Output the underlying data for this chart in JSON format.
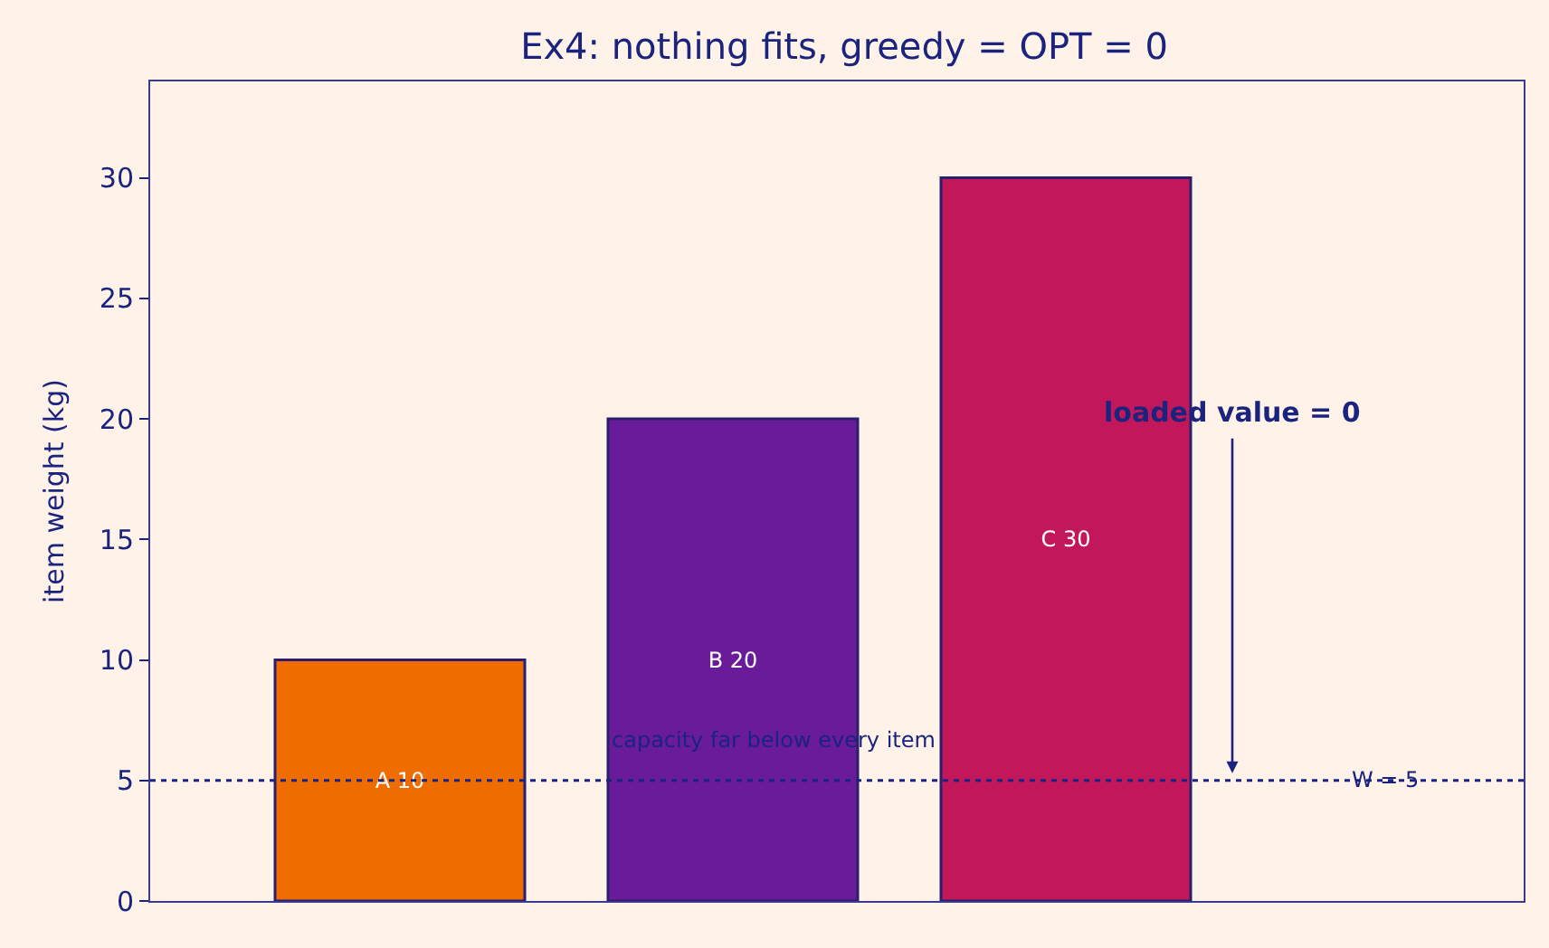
{
  "chart_data": {
    "type": "bar",
    "title": "Ex4: nothing fits, greedy = OPT = 0",
    "ylabel": "item weight (kg)",
    "categories": [
      null,
      null,
      null
    ],
    "values": [
      10,
      20,
      30
    ],
    "colors": [
      "#ef6c00",
      "#6a1b9a",
      "#c2185b"
    ],
    "value_labels": [
      "A 10",
      "B 20",
      "C 30"
    ],
    "ylim": [
      0,
      34
    ],
    "yticks": [
      0,
      5,
      10,
      15,
      20,
      25,
      30
    ],
    "ref_lines": [
      {
        "axis": "y",
        "value": 5,
        "label": "W = 5",
        "color": "#1a237e",
        "line_style": "dotted"
      }
    ],
    "annotations": [
      "capacity far below every item",
      "loaded value = 0"
    ],
    "grid": false,
    "tick_labels": "y"
  }
}
